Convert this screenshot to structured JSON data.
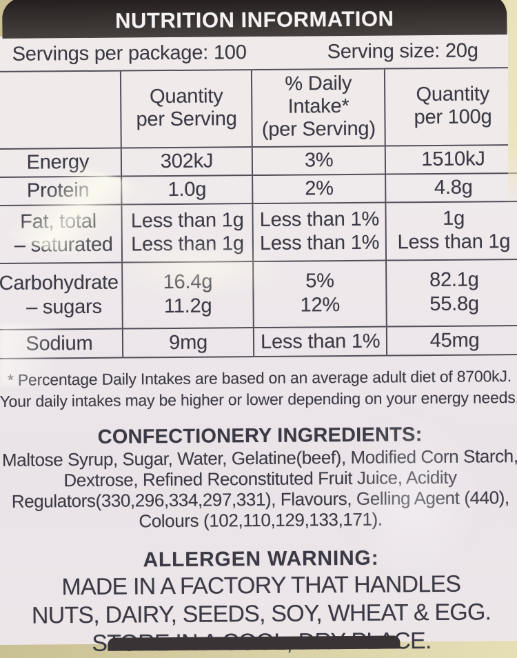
{
  "header": {
    "title": "NUTRITION INFORMATION"
  },
  "servings": {
    "per_package": "Servings per package: 100",
    "serving_size": "Serving size: 20g"
  },
  "table": {
    "col_headers": [
      {
        "line1": "Quantity",
        "line2": "per Serving"
      },
      {
        "line1": "% Daily Intake*",
        "line2": "(per Serving)"
      },
      {
        "line1": "Quantity",
        "line2": "per 100g"
      }
    ],
    "rows": [
      {
        "name": "Energy",
        "serving": "302kJ",
        "daily": "3%",
        "per100": "1510kJ"
      },
      {
        "name": "Protein",
        "serving": "1.0g",
        "daily": "2%",
        "per100": "4.8g"
      },
      {
        "name": "Fat, total",
        "serving": "Less than 1g",
        "daily": "Less than 1%",
        "per100": "1g"
      },
      {
        "name": "– saturated",
        "serving": "Less than 1g",
        "daily": "Less than 1%",
        "per100": "Less than 1g"
      },
      {
        "name": "Carbohydrate",
        "serving": "16.4g",
        "daily": "5%",
        "per100": "82.1g"
      },
      {
        "name": "– sugars",
        "serving": "11.2g",
        "daily": "12%",
        "per100": "55.8g"
      },
      {
        "name": "Sodium",
        "serving": "9mg",
        "daily": "Less than 1%",
        "per100": "45mg"
      }
    ]
  },
  "footnote": {
    "line1": "* Percentage Daily Intakes are based on an average adult diet of 8700kJ.",
    "line2": "Your daily intakes may be higher or lower depending on your energy needs."
  },
  "ingredients": {
    "heading": "CONFECTIONERY INGREDIENTS:",
    "lines": [
      "Maltose Syrup, Sugar, Water, Gelatine(beef), Modified Corn Starch,",
      "Dextrose, Refined Reconstituted Fruit Juice, Acidity",
      "Regulators(330,296,334,297,331), Flavours, Gelling Agent (440),",
      "Colours (102,110,129,133,171)."
    ]
  },
  "allergen": {
    "heading": "ALLERGEN WARNING:",
    "lines": [
      "MADE IN A FACTORY THAT HANDLES",
      "NUTS, DAIRY, SEEDS, SOY, WHEAT & EGG.",
      "STORE IN A COOL, DRY PLACE."
    ]
  },
  "colors": {
    "banner": "#332d2c",
    "label_background": "#eee8eb",
    "package_background": "#d8d0a4",
    "text": "#3b3a44",
    "table_line": "#514e58"
  }
}
